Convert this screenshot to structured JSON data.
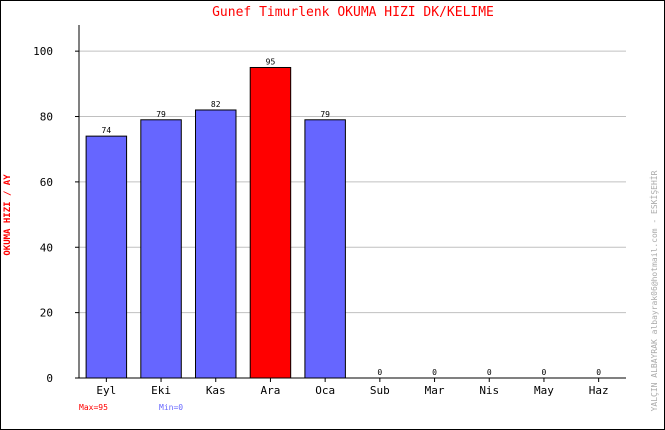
{
  "chart_data": {
    "type": "bar",
    "title": "Gunef Timurlenk   OKUMA HIZI  DK/KELIME",
    "ylabel": "OKUMA HIZI / AY",
    "xlabel": "",
    "categories": [
      "Eyl",
      "Eki",
      "Kas",
      "Ara",
      "Oca",
      "Sub",
      "Mar",
      "Nis",
      "May",
      "Haz"
    ],
    "values": [
      74,
      79,
      82,
      95,
      79,
      0,
      0,
      0,
      0,
      0
    ],
    "ylim": [
      0,
      108
    ],
    "yticks": [
      0,
      20,
      40,
      60,
      80,
      100
    ],
    "grid": true,
    "max_label": "Max=95",
    "min_label": "Min=0",
    "credit": "YALÇIN ALBAYRAK  albayrak06@hotmail.com - ESKİŞEHİR",
    "colors": {
      "bar": "#6666ff",
      "max_bar": "#ff0000",
      "title": "#ff0000",
      "ylabel": "#ff0000",
      "max_text": "#ff0000",
      "min_text": "#6666ff",
      "grid": "#c0c0c0",
      "credit": "#aaaaaa"
    }
  }
}
